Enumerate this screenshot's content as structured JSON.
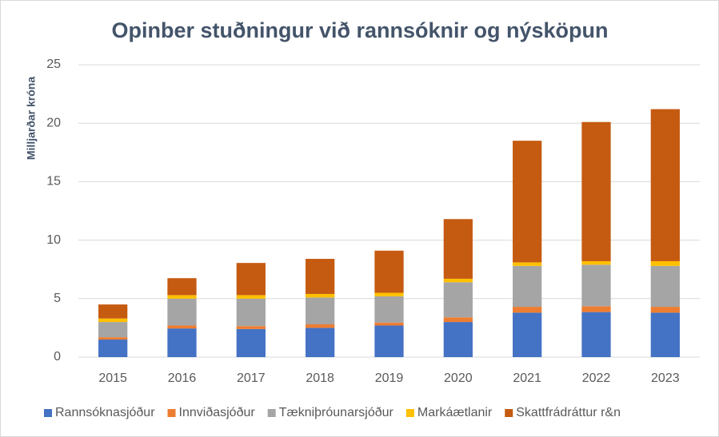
{
  "chart_data": {
    "type": "stacked_bar",
    "title": "Opinber stuðningur við rannsóknir og nýsköpun",
    "y_label": "Milljarðar króna",
    "categories": [
      "2015",
      "2016",
      "2017",
      "2018",
      "2019",
      "2020",
      "2021",
      "2022",
      "2023"
    ],
    "series": [
      {
        "name": "Rannsóknasjóður",
        "color": "#4472c4",
        "values": [
          1.5,
          2.45,
          2.4,
          2.5,
          2.7,
          3.0,
          3.8,
          3.85,
          3.8
        ]
      },
      {
        "name": "Innviðasjóður",
        "color": "#ed7d31",
        "values": [
          0.2,
          0.25,
          0.25,
          0.3,
          0.25,
          0.4,
          0.5,
          0.5,
          0.5
        ]
      },
      {
        "name": "Tækniþróunarsjóður",
        "color": "#a5a5a5",
        "values": [
          1.3,
          2.3,
          2.35,
          2.3,
          2.25,
          3.0,
          3.5,
          3.55,
          3.5
        ]
      },
      {
        "name": "Markáætlanir",
        "color": "#ffc000",
        "values": [
          0.3,
          0.3,
          0.3,
          0.3,
          0.3,
          0.3,
          0.3,
          0.3,
          0.4
        ]
      },
      {
        "name": "Skattfrádráttur r&n",
        "color": "#c55a11",
        "values": [
          1.2,
          1.45,
          2.75,
          3.0,
          3.6,
          5.1,
          10.4,
          11.9,
          13.0
        ]
      }
    ],
    "ylim": [
      0,
      25
    ],
    "yticks": [
      0,
      5,
      10,
      15,
      20,
      25
    ],
    "grid": true,
    "legend": "bottom"
  }
}
